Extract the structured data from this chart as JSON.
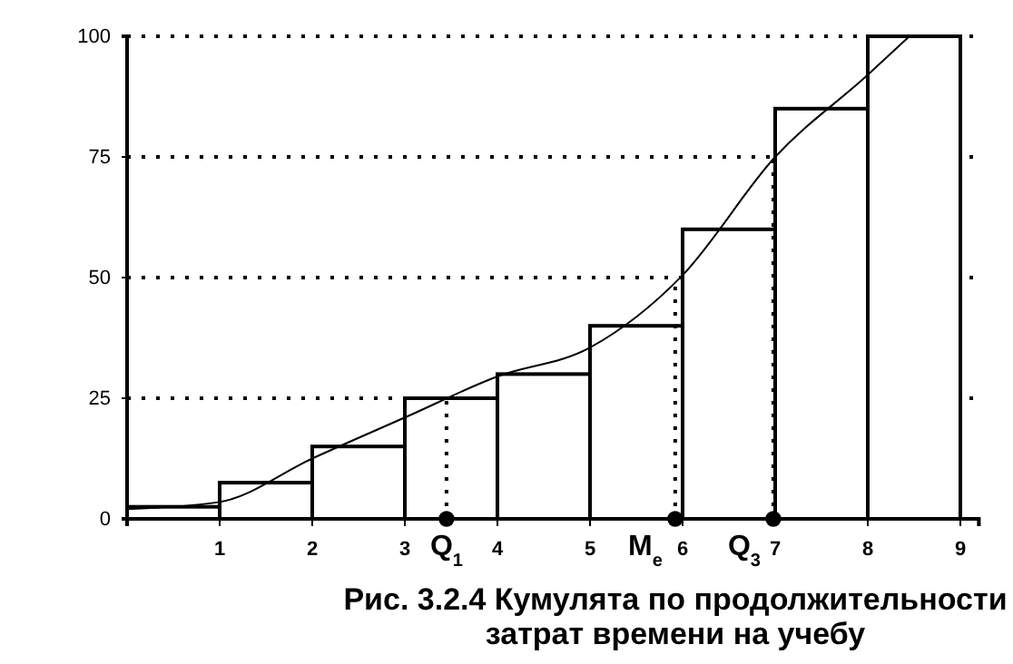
{
  "chart_data": {
    "type": "histogram",
    "title": "Рис. 3.2.4 Кумулята  по продолжительности затрат времени на учебу",
    "series": [
      {
        "color": "#ffffff",
        "bins": [
          0,
          1,
          2,
          3,
          4,
          5,
          6,
          7,
          8,
          9
        ],
        "values": [
          2.5,
          7.5,
          15,
          25,
          30,
          40,
          60,
          85,
          100
        ]
      },
      {
        "type": "line",
        "color": "#000000",
        "x": [
          0,
          1,
          2,
          3,
          4,
          5,
          6,
          7,
          8,
          8.45
        ],
        "values": [
          2,
          3.5,
          12.5,
          21,
          29.5,
          35.5,
          50.5,
          75,
          92,
          100
        ]
      },
      {
        "type": "scatter",
        "color": "#000000",
        "marker": "circle",
        "x": [
          3.45,
          5.92,
          6.98
        ],
        "values": [
          0,
          0,
          0
        ]
      }
    ],
    "xlim": [
      0,
      9.2
    ],
    "xticks": [
      1,
      2,
      3,
      4,
      5,
      6,
      7,
      8,
      9
    ],
    "ylim": [
      0,
      100
    ],
    "yticks": [
      0,
      25,
      50,
      75,
      100
    ],
    "grid": "y",
    "ref_lines": [
      {
        "axis": "x",
        "value": 3.45,
        "label": "Q$_{1}$",
        "line_style": "dotted"
      },
      {
        "axis": "x",
        "value": 5.92,
        "label": "M$_{e}$",
        "line_style": "dotted"
      },
      {
        "axis": "x",
        "value": 6.98,
        "label": "Q$_{3}$",
        "line_style": "dotted"
      }
    ]
  }
}
